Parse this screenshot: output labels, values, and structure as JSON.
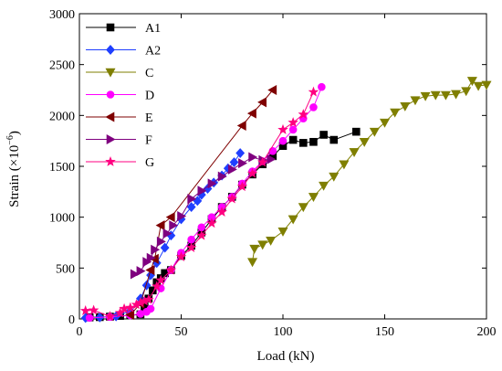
{
  "chart_data": {
    "type": "line",
    "title": "",
    "xlabel": "Load (kN)",
    "ylabel_base": "Strain (×10",
    "ylabel_sup": "−6",
    "ylabel_end": ")",
    "xlim": [
      0,
      200
    ],
    "ylim": [
      0,
      3000
    ],
    "xticks": [
      0,
      50,
      100,
      150,
      200
    ],
    "yticks": [
      0,
      500,
      1000,
      1500,
      2000,
      2500,
      3000
    ],
    "grid": false,
    "legend_position": "top-left",
    "series": [
      {
        "name": "A1",
        "color": "#000000",
        "marker": "square",
        "points": [
          [
            5,
            15
          ],
          [
            10,
            18
          ],
          [
            15,
            22
          ],
          [
            20,
            30
          ],
          [
            25,
            35
          ],
          [
            30,
            45
          ],
          [
            32,
            120
          ],
          [
            34,
            200
          ],
          [
            36,
            280
          ],
          [
            38,
            360
          ],
          [
            40,
            400
          ],
          [
            42,
            450
          ],
          [
            45,
            480
          ],
          [
            50,
            620
          ],
          [
            55,
            720
          ],
          [
            60,
            850
          ],
          [
            65,
            980
          ],
          [
            70,
            1100
          ],
          [
            75,
            1200
          ],
          [
            80,
            1320
          ],
          [
            85,
            1420
          ],
          [
            90,
            1520
          ],
          [
            95,
            1600
          ],
          [
            100,
            1700
          ],
          [
            105,
            1760
          ],
          [
            110,
            1730
          ],
          [
            115,
            1740
          ],
          [
            120,
            1810
          ],
          [
            125,
            1760
          ],
          [
            136,
            1840
          ]
        ]
      },
      {
        "name": "A2",
        "color": "#1f3fff",
        "marker": "diamond",
        "points": [
          [
            3,
            10
          ],
          [
            10,
            15
          ],
          [
            18,
            25
          ],
          [
            25,
            80
          ],
          [
            30,
            200
          ],
          [
            33,
            330
          ],
          [
            35,
            430
          ],
          [
            38,
            550
          ],
          [
            42,
            700
          ],
          [
            45,
            820
          ],
          [
            50,
            980
          ],
          [
            55,
            1100
          ],
          [
            58,
            1160
          ],
          [
            60,
            1220
          ],
          [
            63,
            1280
          ],
          [
            66,
            1340
          ],
          [
            70,
            1410
          ],
          [
            73,
            1480
          ],
          [
            76,
            1540
          ],
          [
            79,
            1630
          ]
        ]
      },
      {
        "name": "C",
        "color": "#7f7f00",
        "marker": "triangle-down",
        "points": [
          [
            85,
            560
          ],
          [
            86,
            690
          ],
          [
            90,
            730
          ],
          [
            94,
            770
          ],
          [
            100,
            860
          ],
          [
            105,
            980
          ],
          [
            110,
            1100
          ],
          [
            115,
            1200
          ],
          [
            120,
            1310
          ],
          [
            125,
            1400
          ],
          [
            130,
            1520
          ],
          [
            135,
            1640
          ],
          [
            140,
            1740
          ],
          [
            145,
            1840
          ],
          [
            150,
            1930
          ],
          [
            155,
            2030
          ],
          [
            160,
            2090
          ],
          [
            165,
            2150
          ],
          [
            170,
            2190
          ],
          [
            175,
            2200
          ],
          [
            180,
            2200
          ],
          [
            185,
            2210
          ],
          [
            190,
            2240
          ],
          [
            193,
            2340
          ],
          [
            196,
            2290
          ],
          [
            200,
            2300
          ]
        ]
      },
      {
        "name": "D",
        "color": "#ff00ff",
        "marker": "circle",
        "points": [
          [
            5,
            10
          ],
          [
            15,
            20
          ],
          [
            25,
            35
          ],
          [
            30,
            50
          ],
          [
            33,
            70
          ],
          [
            35,
            100
          ],
          [
            40,
            300
          ],
          [
            45,
            480
          ],
          [
            50,
            650
          ],
          [
            55,
            780
          ],
          [
            60,
            900
          ],
          [
            65,
            1000
          ],
          [
            70,
            1100
          ],
          [
            75,
            1200
          ],
          [
            80,
            1330
          ],
          [
            85,
            1450
          ],
          [
            90,
            1550
          ],
          [
            95,
            1650
          ],
          [
            100,
            1750
          ],
          [
            105,
            1860
          ],
          [
            110,
            1970
          ],
          [
            115,
            2080
          ],
          [
            119,
            2280
          ]
        ]
      },
      {
        "name": "E",
        "color": "#7f0000",
        "marker": "triangle-left",
        "points": [
          [
            25,
            40
          ],
          [
            30,
            150
          ],
          [
            35,
            480
          ],
          [
            37,
            590
          ],
          [
            40,
            920
          ],
          [
            45,
            1000
          ],
          [
            80,
            1900
          ],
          [
            85,
            2020
          ],
          [
            90,
            2130
          ],
          [
            95,
            2250
          ]
        ]
      },
      {
        "name": "F",
        "color": "#7f007f",
        "marker": "triangle-right",
        "points": [
          [
            27,
            440
          ],
          [
            30,
            470
          ],
          [
            33,
            560
          ],
          [
            35,
            600
          ],
          [
            37,
            680
          ],
          [
            40,
            760
          ],
          [
            43,
            840
          ],
          [
            46,
            920
          ],
          [
            50,
            1010
          ],
          [
            55,
            1180
          ],
          [
            60,
            1260
          ],
          [
            65,
            1330
          ],
          [
            70,
            1400
          ],
          [
            75,
            1470
          ],
          [
            80,
            1530
          ],
          [
            85,
            1590
          ],
          [
            90,
            1560
          ],
          [
            94,
            1570
          ]
        ]
      },
      {
        "name": "G",
        "color": "#ff0080",
        "marker": "star",
        "points": [
          [
            3,
            80
          ],
          [
            7,
            85
          ],
          [
            15,
            25
          ],
          [
            20,
            60
          ],
          [
            22,
            100
          ],
          [
            25,
            110
          ],
          [
            28,
            140
          ],
          [
            30,
            160
          ],
          [
            32,
            175
          ],
          [
            34,
            190
          ],
          [
            38,
            320
          ],
          [
            40,
            380
          ],
          [
            45,
            480
          ],
          [
            50,
            610
          ],
          [
            55,
            700
          ],
          [
            60,
            820
          ],
          [
            65,
            940
          ],
          [
            70,
            1050
          ],
          [
            75,
            1180
          ],
          [
            80,
            1300
          ],
          [
            85,
            1430
          ],
          [
            90,
            1540
          ],
          [
            100,
            1860
          ],
          [
            105,
            1930
          ],
          [
            110,
            2010
          ],
          [
            115,
            2230
          ]
        ]
      }
    ]
  }
}
